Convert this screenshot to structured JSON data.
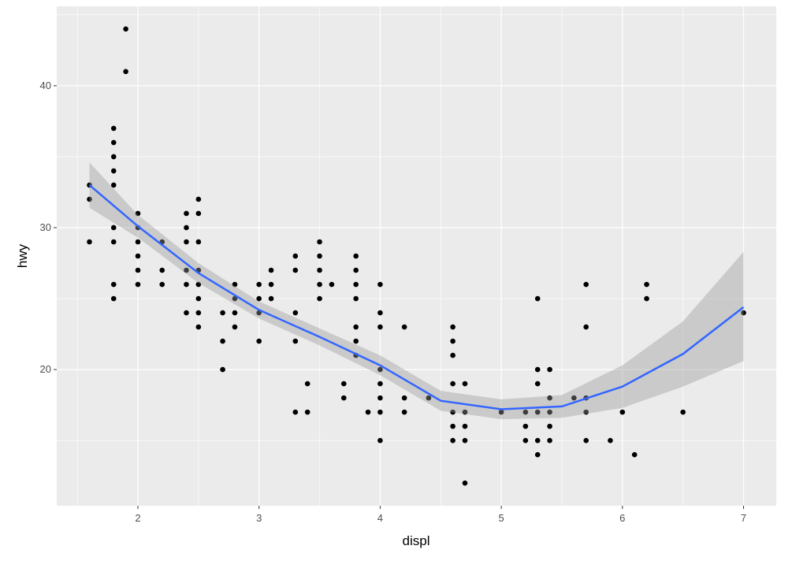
{
  "chart_data": {
    "type": "scatter",
    "x_label": "displ",
    "y_label": "hwy",
    "xlim": [
      1.33,
      7.27
    ],
    "ylim": [
      10.4,
      45.6
    ],
    "xticks": [
      2,
      3,
      4,
      5,
      6,
      7
    ],
    "yticks": [
      20,
      30,
      40
    ],
    "grid": true,
    "background": "#ebebeb",
    "point_color": "#000000",
    "x": [
      1.6,
      1.6,
      1.6,
      1.8,
      1.8,
      1.8,
      1.8,
      1.8,
      1.8,
      1.8,
      1.8,
      1.8,
      1.9,
      1.9,
      2.0,
      2.0,
      2.0,
      2.0,
      2.0,
      2.0,
      2.2,
      2.2,
      2.2,
      2.4,
      2.4,
      2.4,
      2.4,
      2.4,
      2.4,
      2.5,
      2.5,
      2.5,
      2.5,
      2.5,
      2.5,
      2.5,
      2.5,
      2.7,
      2.7,
      2.7,
      2.8,
      2.8,
      2.8,
      2.8,
      3.0,
      3.0,
      3.0,
      3.0,
      3.1,
      3.1,
      3.1,
      3.3,
      3.3,
      3.3,
      3.3,
      3.3,
      3.4,
      3.4,
      3.5,
      3.5,
      3.5,
      3.5,
      3.5,
      3.6,
      3.7,
      3.7,
      3.8,
      3.8,
      3.8,
      3.8,
      3.8,
      3.8,
      3.8,
      3.9,
      4.0,
      4.0,
      4.0,
      4.0,
      4.0,
      4.0,
      4.0,
      4.0,
      4.2,
      4.2,
      4.2,
      4.4,
      4.6,
      4.6,
      4.6,
      4.6,
      4.6,
      4.6,
      4.6,
      4.7,
      4.7,
      4.7,
      4.7,
      4.7,
      5.0,
      5.2,
      5.2,
      5.2,
      5.3,
      5.3,
      5.3,
      5.3,
      5.3,
      5.3,
      5.4,
      5.4,
      5.4,
      5.4,
      5.4,
      5.6,
      5.7,
      5.7,
      5.7,
      5.7,
      5.7,
      5.9,
      6.0,
      6.1,
      6.2,
      6.2,
      6.5,
      7.0
    ],
    "y": [
      33,
      32,
      29,
      37,
      36,
      35,
      34,
      33,
      30,
      29,
      26,
      25,
      44,
      41,
      31,
      30,
      29,
      28,
      27,
      26,
      29,
      27,
      26,
      31,
      30,
      29,
      27,
      26,
      24,
      32,
      31,
      29,
      27,
      26,
      25,
      24,
      23,
      24,
      22,
      20,
      26,
      25,
      24,
      23,
      26,
      25,
      24,
      22,
      27,
      26,
      25,
      28,
      27,
      24,
      22,
      17,
      19,
      17,
      29,
      28,
      27,
      26,
      25,
      26,
      19,
      18,
      28,
      27,
      26,
      25,
      23,
      22,
      21,
      17,
      26,
      24,
      23,
      20,
      19,
      18,
      17,
      15,
      23,
      18,
      17,
      18,
      23,
      22,
      21,
      19,
      17,
      16,
      15,
      19,
      17,
      16,
      15,
      12,
      17,
      17,
      16,
      15,
      25,
      20,
      19,
      17,
      15,
      14,
      20,
      18,
      17,
      16,
      15,
      18,
      26,
      23,
      18,
      17,
      15,
      15,
      17,
      14,
      26,
      25,
      17,
      24
    ],
    "smooth": {
      "color": "#3366ff",
      "band_color": "#999999",
      "x": [
        1.6,
        2,
        2.5,
        3,
        3.5,
        4,
        4.5,
        5,
        5.5,
        6,
        6.5,
        7
      ],
      "y": [
        33,
        30.1,
        26.8,
        24.2,
        22.3,
        20.3,
        17.8,
        17.2,
        17.4,
        18.8,
        21.1,
        24.4
      ],
      "ymin": [
        31.4,
        29.3,
        26.1,
        23.6,
        21.7,
        19.6,
        17.1,
        16.5,
        16.6,
        17.3,
        18.8,
        20.6
      ],
      "ymax": [
        34.6,
        30.9,
        27.5,
        24.8,
        22.9,
        21.0,
        18.5,
        17.9,
        18.2,
        20.3,
        23.4,
        28.3
      ]
    }
  }
}
